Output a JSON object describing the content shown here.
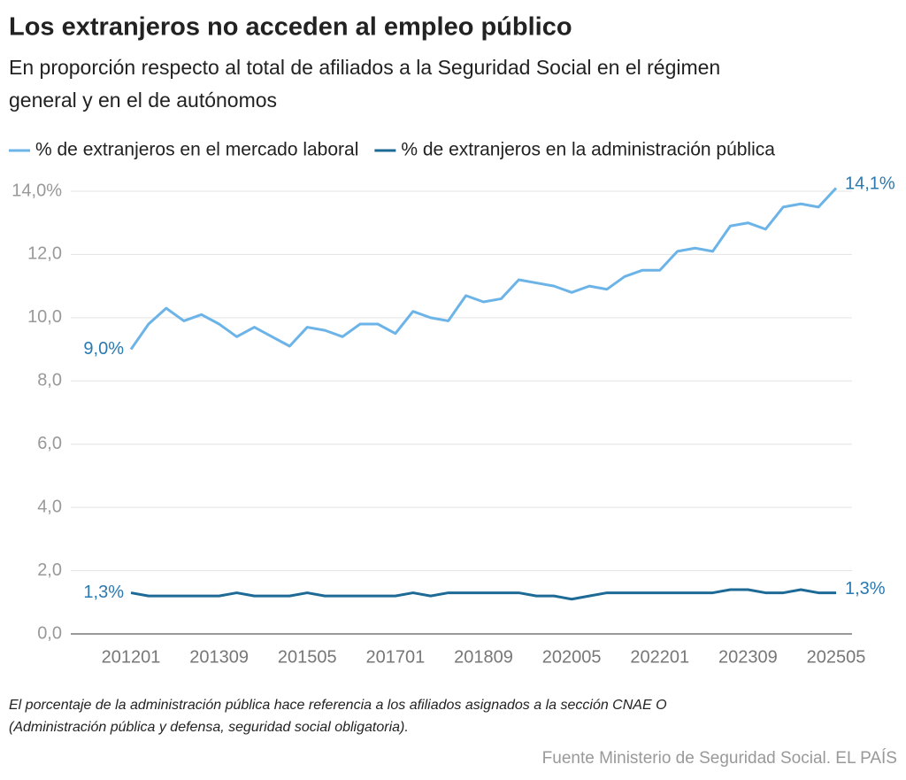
{
  "chart_data": {
    "type": "line",
    "title": "Los extranjeros no acceden al empleo público",
    "subtitle": [
      "En proporción respecto al total de afiliados a la Seguridad Social en el régimen",
      "general y en el de autónomos"
    ],
    "categories": [
      "201201",
      null,
      null,
      null,
      null,
      "201309",
      null,
      null,
      null,
      null,
      "201505",
      null,
      null,
      null,
      null,
      "201701",
      null,
      null,
      null,
      null,
      "201809",
      null,
      null,
      null,
      null,
      "202005",
      null,
      null,
      null,
      null,
      "202201",
      null,
      null,
      null,
      null,
      "202309",
      null,
      null,
      null,
      null,
      "202505"
    ],
    "series": [
      {
        "name": "% de extranjeros en el mercado laboral",
        "color": "#6cb4e8",
        "values": [
          9.0,
          9.8,
          10.3,
          9.9,
          10.1,
          9.8,
          9.4,
          9.7,
          9.4,
          9.1,
          9.7,
          9.6,
          9.4,
          9.8,
          9.8,
          9.5,
          10.2,
          10.0,
          9.9,
          10.7,
          10.5,
          10.6,
          11.2,
          11.1,
          11.0,
          10.8,
          11.0,
          10.9,
          11.3,
          11.5,
          11.5,
          12.1,
          12.2,
          12.1,
          12.9,
          13.0,
          12.8,
          13.5,
          13.6,
          13.5,
          14.1
        ],
        "value_labels": [
          "9,0%",
          null,
          null,
          null,
          null,
          null,
          null,
          null,
          null,
          null,
          null,
          null,
          null,
          null,
          null,
          null,
          null,
          null,
          null,
          null,
          null,
          null,
          null,
          null,
          null,
          null,
          null,
          null,
          null,
          null,
          null,
          null,
          null,
          null,
          null,
          null,
          null,
          null,
          null,
          null,
          "14,1%"
        ]
      },
      {
        "name": "% de extranjeros en la administración pública",
        "color": "#1d6a96",
        "values": [
          1.3,
          1.2,
          1.2,
          1.2,
          1.2,
          1.2,
          1.3,
          1.2,
          1.2,
          1.2,
          1.3,
          1.2,
          1.2,
          1.2,
          1.2,
          1.2,
          1.3,
          1.2,
          1.3,
          1.3,
          1.3,
          1.3,
          1.3,
          1.2,
          1.2,
          1.1,
          1.2,
          1.3,
          1.3,
          1.3,
          1.3,
          1.3,
          1.3,
          1.3,
          1.4,
          1.4,
          1.3,
          1.3,
          1.4,
          1.3,
          1.3
        ],
        "value_labels": [
          "1,3%",
          null,
          null,
          null,
          null,
          null,
          null,
          null,
          null,
          null,
          null,
          null,
          null,
          null,
          null,
          null,
          null,
          null,
          null,
          null,
          null,
          null,
          null,
          null,
          null,
          null,
          null,
          null,
          null,
          null,
          null,
          null,
          null,
          null,
          null,
          null,
          null,
          null,
          null,
          null,
          "1,3%"
        ]
      }
    ],
    "ylim": [
      0,
      14.0
    ],
    "yticks": [
      {
        "value": 0,
        "label": "0,0"
      },
      {
        "value": 2,
        "label": "2,0"
      },
      {
        "value": 4,
        "label": "4,0"
      },
      {
        "value": 6,
        "label": "6,0"
      },
      {
        "value": 8,
        "label": "8,0"
      },
      {
        "value": 10,
        "label": "10,0"
      },
      {
        "value": 12,
        "label": "12,0"
      },
      {
        "value": 14,
        "label": "14,0%"
      }
    ],
    "grid": true,
    "note": [
      "El porcentaje de la administración pública hace referencia a los afiliados asignados a la sección CNAE O",
      "(Administración pública y defensa, seguridad social obligatoria)."
    ],
    "source": "Fuente Ministerio de Seguridad Social. EL PAÍS"
  }
}
